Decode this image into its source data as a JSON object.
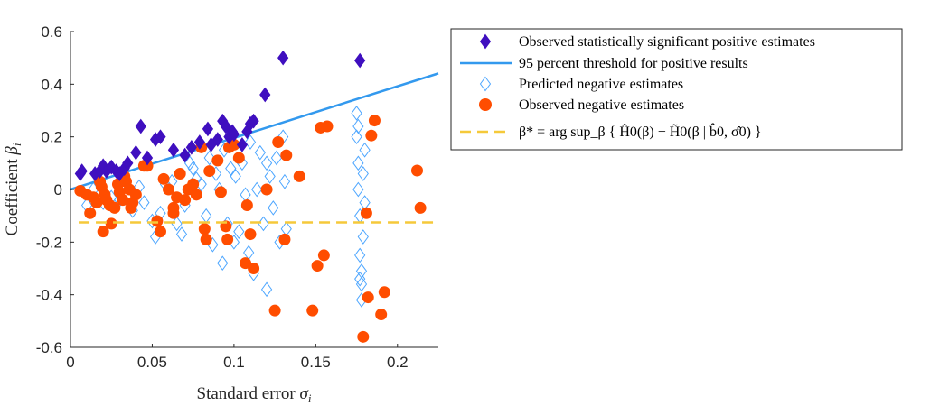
{
  "chart_data": {
    "type": "scatter",
    "xlabel_prefix": "Standard error ",
    "xlabel_symbol": "σ",
    "xlabel_sub": "i",
    "ylabel_prefix": "Coefficient ",
    "ylabel_symbol": "β",
    "ylabel_sub": "i",
    "xlim": [
      0,
      0.225
    ],
    "ylim": [
      -0.6,
      0.6
    ],
    "xticks": [
      0,
      0.05,
      0.1,
      0.15,
      0.2
    ],
    "xtick_labels": [
      "0",
      "0.05",
      "0.1",
      "0.15",
      "0.2"
    ],
    "yticks": [
      0.6,
      0.4,
      0.2,
      0,
      -0.2,
      -0.4,
      -0.6
    ],
    "ytick_labels": [
      "0.6",
      "0.4",
      "0.2",
      "0",
      "-0.2",
      "-0.4",
      "-0.6"
    ],
    "grid": false,
    "legend_position": "outside-right",
    "colors": {
      "significant": "#3f0fbf",
      "threshold": "#3399ee",
      "predicted": "#4da6ff",
      "negative": "#ff4d00",
      "beta_star": "#f5c93a"
    },
    "legend": [
      {
        "key": "significant",
        "label": "Observed statistically significant positive estimates"
      },
      {
        "key": "threshold",
        "label": "95 percent threshold for positive results"
      },
      {
        "key": "predicted",
        "label": "Predicted negative estimates"
      },
      {
        "key": "negative",
        "label": "Observed negative estimates"
      },
      {
        "key": "beta_star",
        "label": "β* = arg sup_β { Ĥ0(β) − H̃0(β | b̂0, σ̂0) }"
      }
    ],
    "threshold_line": {
      "x": [
        0,
        0.225
      ],
      "y": [
        0,
        0.441
      ]
    },
    "beta_star_line": {
      "y": -0.125,
      "x": [
        0.005,
        0.225
      ]
    },
    "series": [
      {
        "key": "significant",
        "points": [
          [
            0.006,
            0.06
          ],
          [
            0.007,
            0.07
          ],
          [
            0.015,
            0.06
          ],
          [
            0.018,
            0.07
          ],
          [
            0.02,
            0.09
          ],
          [
            0.022,
            0.07
          ],
          [
            0.025,
            0.085
          ],
          [
            0.028,
            0.07
          ],
          [
            0.03,
            0.06
          ],
          [
            0.033,
            0.08
          ],
          [
            0.035,
            0.1
          ],
          [
            0.04,
            0.14
          ],
          [
            0.043,
            0.24
          ],
          [
            0.047,
            0.12
          ],
          [
            0.052,
            0.19
          ],
          [
            0.055,
            0.2
          ],
          [
            0.063,
            0.15
          ],
          [
            0.07,
            0.13
          ],
          [
            0.074,
            0.16
          ],
          [
            0.079,
            0.18
          ],
          [
            0.084,
            0.23
          ],
          [
            0.086,
            0.17
          ],
          [
            0.09,
            0.19
          ],
          [
            0.093,
            0.26
          ],
          [
            0.095,
            0.24
          ],
          [
            0.097,
            0.2
          ],
          [
            0.099,
            0.22
          ],
          [
            0.1,
            0.21
          ],
          [
            0.105,
            0.17
          ],
          [
            0.108,
            0.22
          ],
          [
            0.11,
            0.25
          ],
          [
            0.112,
            0.26
          ],
          [
            0.119,
            0.36
          ],
          [
            0.13,
            0.5
          ],
          [
            0.177,
            0.49
          ]
        ]
      },
      {
        "key": "predicted",
        "points": [
          [
            0.01,
            -0.06
          ],
          [
            0.014,
            0.0
          ],
          [
            0.02,
            -0.05
          ],
          [
            0.025,
            -0.03
          ],
          [
            0.03,
            -0.04
          ],
          [
            0.035,
            -0.02
          ],
          [
            0.038,
            -0.08
          ],
          [
            0.042,
            0.01
          ],
          [
            0.045,
            -0.05
          ],
          [
            0.05,
            -0.12
          ],
          [
            0.052,
            -0.18
          ],
          [
            0.055,
            -0.09
          ],
          [
            0.058,
            0.02
          ],
          [
            0.062,
            0.03
          ],
          [
            0.065,
            -0.13
          ],
          [
            0.068,
            -0.17
          ],
          [
            0.07,
            -0.06
          ],
          [
            0.073,
            0.1
          ],
          [
            0.075,
            0.08
          ],
          [
            0.077,
            0.04
          ],
          [
            0.08,
            0.02
          ],
          [
            0.083,
            -0.1
          ],
          [
            0.085,
            0.12
          ],
          [
            0.087,
            -0.21
          ],
          [
            0.089,
            0.06
          ],
          [
            0.091,
            0.0
          ],
          [
            0.093,
            -0.28
          ],
          [
            0.094,
            0.15
          ],
          [
            0.096,
            -0.13
          ],
          [
            0.098,
            0.08
          ],
          [
            0.1,
            -0.2
          ],
          [
            0.101,
            0.05
          ],
          [
            0.103,
            -0.16
          ],
          [
            0.105,
            0.1
          ],
          [
            0.107,
            -0.02
          ],
          [
            0.109,
            -0.24
          ],
          [
            0.11,
            0.18
          ],
          [
            0.112,
            -0.32
          ],
          [
            0.114,
            0.0
          ],
          [
            0.116,
            0.14
          ],
          [
            0.118,
            -0.13
          ],
          [
            0.12,
            -0.38
          ],
          [
            0.12,
            0.1
          ],
          [
            0.122,
            0.05
          ],
          [
            0.124,
            -0.07
          ],
          [
            0.126,
            0.12
          ],
          [
            0.128,
            -0.2
          ],
          [
            0.13,
            0.2
          ],
          [
            0.131,
            0.03
          ],
          [
            0.132,
            -0.15
          ],
          [
            0.175,
            0.29
          ],
          [
            0.175,
            0.2
          ],
          [
            0.176,
            0.1
          ],
          [
            0.176,
            0.0
          ],
          [
            0.177,
            -0.1
          ],
          [
            0.177,
            -0.25
          ],
          [
            0.178,
            -0.31
          ],
          [
            0.178,
            -0.36
          ],
          [
            0.178,
            -0.42
          ],
          [
            0.179,
            0.06
          ],
          [
            0.179,
            -0.18
          ],
          [
            0.18,
            -0.05
          ],
          [
            0.18,
            0.15
          ],
          [
            0.177,
            -0.34
          ],
          [
            0.176,
            0.24
          ]
        ]
      },
      {
        "key": "negative",
        "points": [
          [
            0.006,
            -0.005
          ],
          [
            0.01,
            -0.02
          ],
          [
            0.012,
            -0.09
          ],
          [
            0.014,
            -0.03
          ],
          [
            0.016,
            -0.05
          ],
          [
            0.018,
            0.03
          ],
          [
            0.019,
            0.01
          ],
          [
            0.02,
            -0.16
          ],
          [
            0.021,
            -0.02
          ],
          [
            0.022,
            -0.04
          ],
          [
            0.024,
            -0.06
          ],
          [
            0.025,
            -0.13
          ],
          [
            0.027,
            -0.07
          ],
          [
            0.029,
            0.02
          ],
          [
            0.03,
            -0.01
          ],
          [
            0.032,
            -0.04
          ],
          [
            0.033,
            0.05
          ],
          [
            0.034,
            0.03
          ],
          [
            0.036,
            0.0
          ],
          [
            0.037,
            -0.07
          ],
          [
            0.038,
            -0.05
          ],
          [
            0.04,
            -0.02
          ],
          [
            0.045,
            0.09
          ],
          [
            0.047,
            0.09
          ],
          [
            0.053,
            -0.12
          ],
          [
            0.055,
            -0.16
          ],
          [
            0.057,
            0.04
          ],
          [
            0.06,
            0.0
          ],
          [
            0.063,
            -0.07
          ],
          [
            0.063,
            -0.09
          ],
          [
            0.065,
            -0.03
          ],
          [
            0.067,
            0.06
          ],
          [
            0.07,
            -0.04
          ],
          [
            0.072,
            0.0
          ],
          [
            0.075,
            0.02
          ],
          [
            0.077,
            -0.02
          ],
          [
            0.08,
            0.16
          ],
          [
            0.082,
            -0.15
          ],
          [
            0.083,
            -0.19
          ],
          [
            0.085,
            0.07
          ],
          [
            0.09,
            0.11
          ],
          [
            0.092,
            -0.01
          ],
          [
            0.095,
            -0.14
          ],
          [
            0.096,
            -0.19
          ],
          [
            0.097,
            0.16
          ],
          [
            0.1,
            0.17
          ],
          [
            0.103,
            0.12
          ],
          [
            0.107,
            -0.28
          ],
          [
            0.108,
            -0.06
          ],
          [
            0.11,
            -0.17
          ],
          [
            0.112,
            -0.3
          ],
          [
            0.12,
            0.0
          ],
          [
            0.125,
            -0.46
          ],
          [
            0.127,
            0.18
          ],
          [
            0.131,
            -0.19
          ],
          [
            0.132,
            0.13
          ],
          [
            0.14,
            0.05
          ],
          [
            0.148,
            -0.46
          ],
          [
            0.151,
            -0.29
          ],
          [
            0.153,
            0.235
          ],
          [
            0.155,
            -0.25
          ],
          [
            0.157,
            0.24
          ],
          [
            0.179,
            -0.56
          ],
          [
            0.181,
            -0.09
          ],
          [
            0.182,
            -0.41
          ],
          [
            0.184,
            0.205
          ],
          [
            0.186,
            0.262
          ],
          [
            0.19,
            -0.475
          ],
          [
            0.192,
            -0.39
          ],
          [
            0.212,
            0.072
          ],
          [
            0.214,
            -0.07
          ]
        ]
      }
    ]
  }
}
